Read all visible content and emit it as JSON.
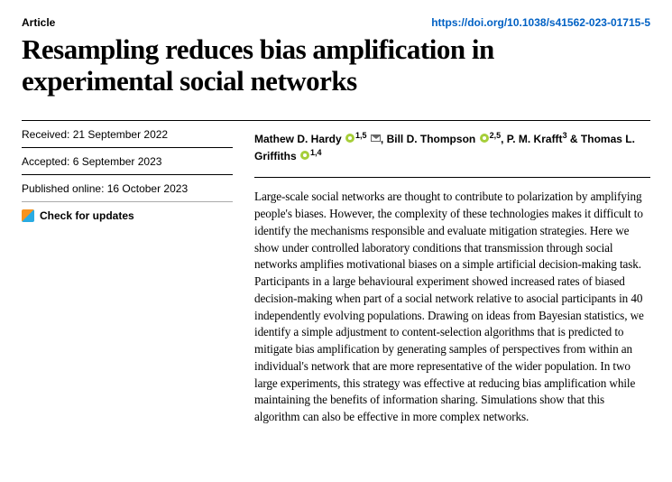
{
  "header": {
    "type": "Article",
    "doi": "https://doi.org/10.1038/s41562-023-01715-5"
  },
  "title": "Resampling reduces bias amplification in experimental social networks",
  "meta": {
    "received": "Received: 21 September 2022",
    "accepted": "Accepted: 6 September 2023",
    "published": "Published online: 16 October 2023",
    "check_updates": "Check for updates"
  },
  "authors": {
    "a1_name": "Mathew D. Hardy",
    "a1_aff": "1,5",
    "a2_name": "Bill D. Thompson",
    "a2_aff": "2,5",
    "a3_name": "P. M. Krafft",
    "a3_aff": "3",
    "amp": " & ",
    "a4_name": "Thomas L. Griffiths",
    "a4_aff": "1,4",
    "sep": ", "
  },
  "abstract": "Large-scale social networks are thought to contribute to polarization by amplifying people's biases. However, the complexity of these technologies makes it difficult to identify the mechanisms responsible and evaluate mitigation strategies. Here we show under controlled laboratory conditions that transmission through social networks amplifies motivational biases on a simple artificial decision-making task. Participants in a large behavioural experiment showed increased rates of biased decision-making when part of a social network relative to asocial participants in 40 independently evolving populations. Drawing on ideas from Bayesian statistics, we identify a simple adjustment to content-selection algorithms that is predicted to mitigate bias amplification by generating samples of perspectives from within an individual's network that are more representative of the wider population. In two large experiments, this strategy was effective at reducing bias amplification while maintaining the benefits of information sharing. Simulations show that this algorithm can also be effective in more complex networks."
}
